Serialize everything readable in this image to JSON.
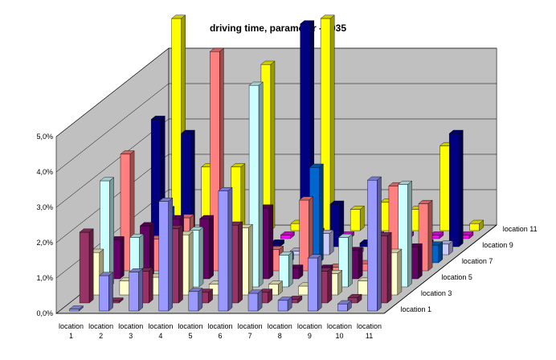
{
  "chart_data": {
    "type": "bar3d",
    "title": "driving time, parameter -0.035",
    "categories": [
      "location 1",
      "location 2",
      "location 3",
      "location 4",
      "location 5",
      "location 6",
      "location 7",
      "location 8",
      "location 9",
      "location 10",
      "location 11"
    ],
    "x_tick_labels": [
      [
        "location",
        "1"
      ],
      [
        "location",
        "2"
      ],
      [
        "location",
        "3"
      ],
      [
        "location",
        "4"
      ],
      [
        "location",
        "5"
      ],
      [
        "location",
        "6"
      ],
      [
        "location",
        "7"
      ],
      [
        "location",
        "8"
      ],
      [
        "location",
        "9"
      ],
      [
        "location",
        "10"
      ],
      [
        "location",
        "11"
      ]
    ],
    "depth_labels": [
      "location 1",
      "location 3",
      "location 5",
      "location 7",
      "location 9",
      "location 11"
    ],
    "y_ticks": [
      "0,0%",
      "1,0%",
      "2,0%",
      "3,0%",
      "4,0%",
      "5,0%"
    ],
    "ylim": [
      0,
      5
    ],
    "unit": "%",
    "grid": true,
    "series": [
      {
        "name": "location 1",
        "color": "#9999ff",
        "values": [
          0.05,
          1.0,
          1.1,
          3.1,
          0.55,
          3.4,
          0.5,
          0.3,
          1.5,
          0.2,
          3.7
        ]
      },
      {
        "name": "location 2",
        "color": "#993366",
        "values": [
          2.0,
          0.05,
          0.9,
          2.1,
          0.3,
          2.2,
          0.3,
          0.1,
          0.9,
          0.15,
          1.9
        ]
      },
      {
        "name": "location 3",
        "color": "#ffffcc",
        "values": [
          1.2,
          0.4,
          0.5,
          1.7,
          0.3,
          1.9,
          0.3,
          0.25,
          0.6,
          0.4,
          1.2
        ]
      },
      {
        "name": "location 4",
        "color": "#ccffff",
        "values": [
          3.0,
          1.4,
          0.6,
          1.6,
          0.3,
          5.7,
          0.9,
          0.1,
          1.4,
          0.1,
          2.9
        ]
      },
      {
        "name": "location 5",
        "color": "#660066",
        "values": [
          1.1,
          1.5,
          1.7,
          1.7,
          0.2,
          2.0,
          0.3,
          0.3,
          0.8,
          0.25,
          0.9
        ]
      },
      {
        "name": "location 6",
        "color": "#ff8080",
        "values": [
          3.3,
          0.9,
          1.5,
          6.2,
          0.15,
          0.6,
          2.0,
          0.1,
          0.2,
          2.4,
          1.9
        ]
      },
      {
        "name": "location 7",
        "color": "#0066cc",
        "values": [
          0.4,
          1.5,
          0.6,
          0.3,
          0.15,
          0.2,
          2.7,
          0.2,
          0.3,
          0.3,
          0.5
        ]
      },
      {
        "name": "location 8",
        "color": "#ccccff",
        "values": [
          0.2,
          0.5,
          0.15,
          0.4,
          0.1,
          0.1,
          0.6,
          0.1,
          0.2,
          0.1,
          0.3
        ]
      },
      {
        "name": "location 9",
        "color": "#000080",
        "values": [
          3.6,
          3.2,
          0.1,
          0.4,
          0.1,
          6.3,
          1.2,
          0.1,
          0.1,
          0.1,
          3.2
        ]
      },
      {
        "name": "location 10",
        "color": "#ff00ff",
        "values": [
          0.1,
          0.1,
          0.1,
          0.05,
          0.1,
          0.2,
          0.1,
          0.1,
          0.1,
          0.1,
          0.1
        ]
      },
      {
        "name": "location 11",
        "color": "#ffff00",
        "values": [
          6.0,
          1.8,
          1.8,
          4.7,
          0.2,
          6.0,
          0.6,
          0.8,
          0.6,
          2.4,
          0.2
        ]
      }
    ]
  }
}
